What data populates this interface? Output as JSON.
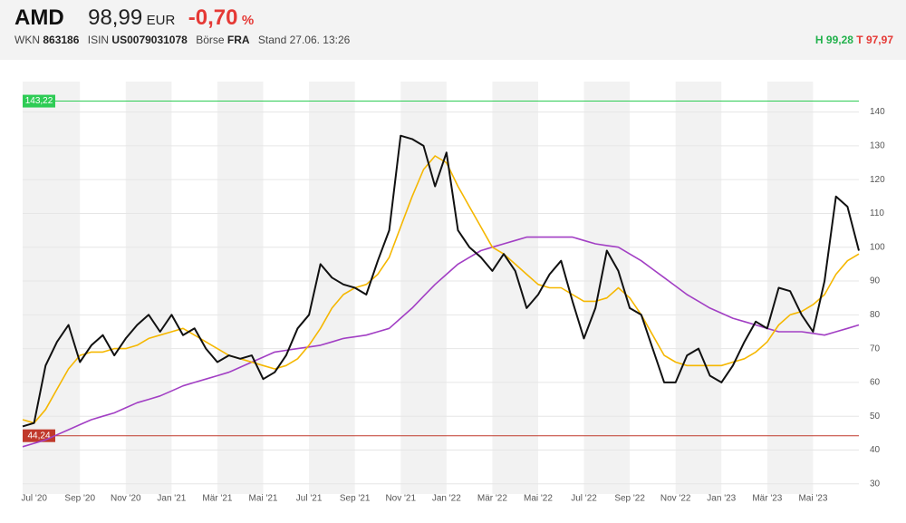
{
  "header": {
    "symbol": "AMD",
    "price": "98,99",
    "currency": "EUR",
    "change": "-0,70",
    "change_unit": "%",
    "wkn_label": "WKN",
    "wkn": "863186",
    "isin_label": "ISIN",
    "isin": "US0079031078",
    "exchange_label": "Börse",
    "exchange": "FRA",
    "stand": "Stand 27.06. 13:26",
    "high": "H 99,28",
    "low": "T 97,97"
  },
  "chart_data": {
    "type": "line",
    "categories": [
      null,
      "Jul '20",
      null,
      null,
      null,
      "Sep '20",
      null,
      null,
      null,
      "Nov '20",
      null,
      null,
      null,
      "Jan '21",
      null,
      null,
      null,
      "Mär '21",
      null,
      null,
      null,
      "Mai '21",
      null,
      null,
      null,
      "Jul '21",
      null,
      null,
      null,
      "Sep '21",
      null,
      null,
      null,
      "Nov '21",
      null,
      null,
      null,
      "Jan '22",
      null,
      null,
      null,
      "Mär '22",
      null,
      null,
      null,
      "Mai '22",
      null,
      null,
      null,
      "Jul '22",
      null,
      null,
      null,
      "Sep '22",
      null,
      null,
      null,
      "Nov '22",
      null,
      null,
      null,
      "Jan '23",
      null,
      null,
      null,
      "Mär '23",
      null,
      null,
      null,
      "Mai '23",
      null,
      null,
      null,
      null
    ],
    "series": [
      {
        "color": "#111111",
        "values": [
          47,
          48,
          65,
          72,
          77,
          66,
          71,
          74,
          68,
          73,
          77,
          80,
          75,
          80,
          74,
          76,
          70,
          66,
          68,
          67,
          68,
          61,
          63,
          68,
          76,
          80,
          95,
          91,
          89,
          88,
          86,
          96,
          105,
          133,
          132,
          130,
          118,
          128,
          105,
          100,
          97,
          93,
          98,
          93,
          82,
          86,
          92,
          96,
          84,
          73,
          82,
          99,
          93,
          82,
          80,
          70,
          60,
          60,
          68,
          70,
          62,
          60,
          65,
          72,
          78,
          76,
          88,
          87,
          80,
          75,
          90,
          115,
          112,
          99
        ]
      },
      {
        "color": "#f5b700",
        "values": [
          49,
          48,
          52,
          58,
          64,
          68,
          69,
          69,
          70,
          70,
          71,
          73,
          74,
          75,
          76,
          74,
          72,
          70,
          68,
          67,
          66,
          65,
          64,
          65,
          67,
          71,
          76,
          82,
          86,
          88,
          89,
          92,
          97,
          106,
          115,
          123,
          127,
          125,
          118,
          112,
          106,
          100,
          98,
          95,
          92,
          89,
          88,
          88,
          86,
          84,
          84,
          85,
          88,
          85,
          80,
          74,
          68,
          66,
          65,
          65,
          65,
          65,
          66,
          67,
          69,
          72,
          77,
          80,
          81,
          83,
          86,
          92,
          96,
          98
        ]
      },
      {
        "color": "#a23fc4",
        "values": [
          41,
          42,
          43,
          44.5,
          46,
          47.5,
          49,
          50,
          51,
          52.5,
          54,
          55,
          56,
          57.5,
          59,
          60,
          61,
          62,
          63,
          64.5,
          66,
          67.5,
          69,
          69.5,
          70,
          70.5,
          71,
          72,
          73,
          73.5,
          74,
          75,
          76,
          79,
          82,
          85.5,
          89,
          92,
          95,
          97,
          99,
          100,
          101,
          102,
          103,
          103,
          103,
          103,
          103,
          102,
          101,
          100.5,
          100,
          98,
          96,
          93.5,
          91,
          88.5,
          86,
          84,
          82,
          80.5,
          79,
          78,
          77,
          76,
          75,
          75,
          75,
          74.5,
          74,
          75,
          76,
          77
        ]
      }
    ],
    "reference_lines": [
      {
        "value": 143.22,
        "label": "143,22",
        "color": "#2ecc55"
      },
      {
        "value": 44.24,
        "label": "44,24",
        "color": "#c0392b"
      }
    ],
    "ylim": [
      27,
      149
    ],
    "yticks": [
      30,
      40,
      50,
      60,
      70,
      80,
      90,
      100,
      110,
      120,
      130,
      140
    ],
    "grid": true
  }
}
